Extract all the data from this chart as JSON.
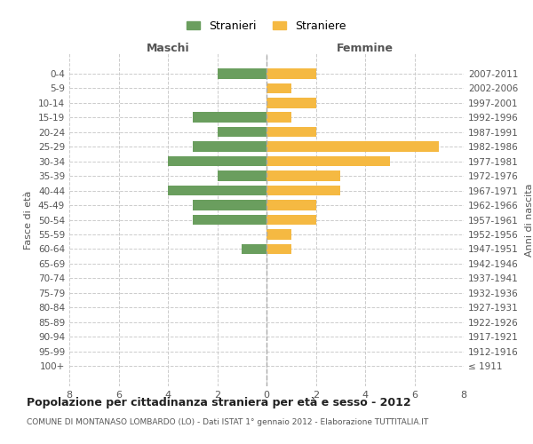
{
  "age_groups": [
    "100+",
    "95-99",
    "90-94",
    "85-89",
    "80-84",
    "75-79",
    "70-74",
    "65-69",
    "60-64",
    "55-59",
    "50-54",
    "45-49",
    "40-44",
    "35-39",
    "30-34",
    "25-29",
    "20-24",
    "15-19",
    "10-14",
    "5-9",
    "0-4"
  ],
  "birth_years": [
    "≤ 1911",
    "1912-1916",
    "1917-1921",
    "1922-1926",
    "1927-1931",
    "1932-1936",
    "1937-1941",
    "1942-1946",
    "1947-1951",
    "1952-1956",
    "1957-1961",
    "1962-1966",
    "1967-1971",
    "1972-1976",
    "1977-1981",
    "1982-1986",
    "1987-1991",
    "1992-1996",
    "1997-2001",
    "2002-2006",
    "2007-2011"
  ],
  "maschi": [
    0,
    0,
    0,
    0,
    0,
    0,
    0,
    0,
    1,
    0,
    3,
    3,
    4,
    2,
    4,
    3,
    2,
    3,
    0,
    0,
    2
  ],
  "femmine": [
    0,
    0,
    0,
    0,
    0,
    0,
    0,
    0,
    1,
    1,
    2,
    2,
    3,
    3,
    5,
    7,
    2,
    1,
    2,
    1,
    2
  ],
  "color_maschi": "#6a9e5e",
  "color_femmine": "#f5b942",
  "title": "Popolazione per cittadinanza straniera per età e sesso - 2012",
  "subtitle": "COMUNE DI MONTANASO LOMBARDO (LO) - Dati ISTAT 1° gennaio 2012 - Elaborazione TUTTITALIA.IT",
  "xlabel_left": "Maschi",
  "xlabel_right": "Femmine",
  "ylabel_left": "Fasce di età",
  "ylabel_right": "Anni di nascita",
  "legend_maschi": "Stranieri",
  "legend_femmine": "Straniere",
  "xlim": 8,
  "background_color": "#ffffff",
  "grid_color": "#cccccc"
}
